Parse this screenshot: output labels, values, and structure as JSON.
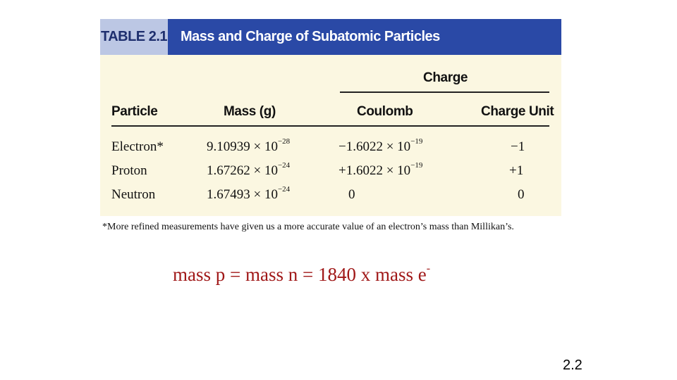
{
  "table": {
    "number": "TABLE 2.1",
    "title": "Mass and Charge of Subatomic Particles",
    "group_header": "Charge",
    "columns": {
      "particle": "Particle",
      "mass": "Mass (g)",
      "coulomb": "Coulomb",
      "charge_unit": "Charge Unit"
    },
    "rows": [
      {
        "particle": "Electron*",
        "mass_base": "9.10939 × 10",
        "mass_exp": "−28",
        "coulomb_base": "−1.6022 × 10",
        "coulomb_exp": "−19",
        "charge_unit": "−1"
      },
      {
        "particle": "Proton",
        "mass_base": "1.67262 × 10",
        "mass_exp": "−24",
        "coulomb_base": "+1.6022 × 10",
        "coulomb_exp": "−19",
        "charge_unit": "+1"
      },
      {
        "particle": "Neutron",
        "mass_base": "1.67493 × 10",
        "mass_exp": "−24",
        "coulomb_base": "0",
        "coulomb_exp": "",
        "charge_unit": "0"
      }
    ],
    "footnote": "*More refined measurements have given us a more accurate value of an electron’s mass than Millikan’s."
  },
  "equation": {
    "text": "mass p = mass n = 1840 x mass e",
    "superscript": "-"
  },
  "slide_number": "2.2",
  "colors": {
    "header_blue": "#2a49a6",
    "table_bg": "#fbf7e1",
    "equation_red": "#a01818"
  }
}
